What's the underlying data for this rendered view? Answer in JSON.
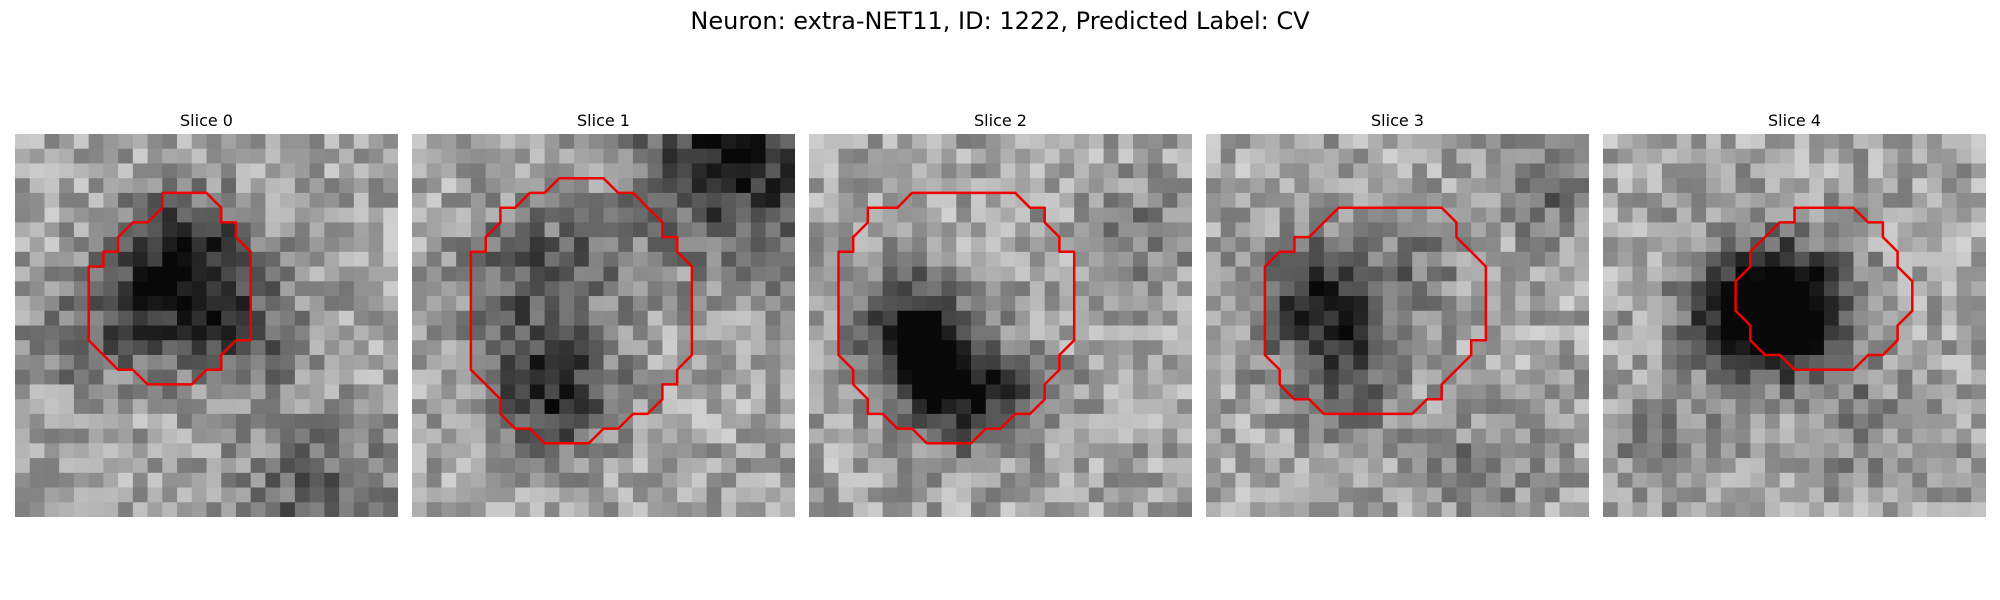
{
  "figure": {
    "title": "Neuron: extra-NET11, ID: 1222, Predicted Label: CV"
  },
  "style": {
    "contour_color": "#ee0000"
  },
  "panels": [
    {
      "title": "Slice 0",
      "contour": [
        [
          5,
          2
        ],
        [
          7,
          2
        ],
        [
          8,
          3
        ],
        [
          8,
          4
        ],
        [
          9,
          4
        ],
        [
          9,
          5
        ],
        [
          10,
          6
        ],
        [
          10,
          12
        ],
        [
          9,
          12
        ],
        [
          8,
          13
        ],
        [
          8,
          14
        ],
        [
          7,
          14
        ],
        [
          6,
          15
        ],
        [
          3,
          15
        ],
        [
          2,
          14
        ],
        [
          1,
          14
        ],
        [
          0,
          13
        ],
        [
          -1,
          12
        ],
        [
          -1,
          7
        ],
        [
          0,
          7
        ],
        [
          0,
          6
        ],
        [
          1,
          6
        ],
        [
          1,
          5
        ],
        [
          2,
          4
        ],
        [
          3,
          4
        ],
        [
          4,
          3
        ],
        [
          4,
          2
        ]
      ]
    },
    {
      "title": "Slice 1",
      "contour": [
        [
          4,
          1
        ],
        [
          7,
          1
        ],
        [
          8,
          2
        ],
        [
          9,
          2
        ],
        [
          10,
          3
        ],
        [
          11,
          4
        ],
        [
          11,
          5
        ],
        [
          12,
          5
        ],
        [
          12,
          6
        ],
        [
          13,
          7
        ],
        [
          13,
          13
        ],
        [
          12,
          14
        ],
        [
          12,
          15
        ],
        [
          11,
          15
        ],
        [
          11,
          16
        ],
        [
          10,
          17
        ],
        [
          9,
          17
        ],
        [
          8,
          18
        ],
        [
          7,
          18
        ],
        [
          6,
          19
        ],
        [
          3,
          19
        ],
        [
          2,
          18
        ],
        [
          1,
          18
        ],
        [
          0,
          17
        ],
        [
          0,
          16
        ],
        [
          -1,
          15
        ],
        [
          -2,
          14
        ],
        [
          -2,
          6
        ],
        [
          -1,
          6
        ],
        [
          -1,
          5
        ],
        [
          0,
          4
        ],
        [
          0,
          3
        ],
        [
          1,
          3
        ],
        [
          2,
          2
        ],
        [
          3,
          2
        ]
      ]
    },
    {
      "title": "Slice 2",
      "contour": [
        [
          3,
          2
        ],
        [
          8,
          2
        ],
        [
          9,
          3
        ],
        [
          10,
          3
        ],
        [
          10,
          4
        ],
        [
          11,
          5
        ],
        [
          11,
          6
        ],
        [
          12,
          6
        ],
        [
          12,
          12
        ],
        [
          11,
          13
        ],
        [
          11,
          14
        ],
        [
          10,
          15
        ],
        [
          10,
          16
        ],
        [
          9,
          17
        ],
        [
          8,
          17
        ],
        [
          7,
          18
        ],
        [
          6,
          18
        ],
        [
          5,
          19
        ],
        [
          2,
          19
        ],
        [
          1,
          18
        ],
        [
          0,
          18
        ],
        [
          -1,
          17
        ],
        [
          -2,
          17
        ],
        [
          -2,
          16
        ],
        [
          -3,
          15
        ],
        [
          -3,
          14
        ],
        [
          -4,
          13
        ],
        [
          -4,
          6
        ],
        [
          -3,
          6
        ],
        [
          -3,
          5
        ],
        [
          -2,
          4
        ],
        [
          -2,
          3
        ],
        [
          0,
          3
        ],
        [
          1,
          2
        ]
      ]
    },
    {
      "title": "Slice 3",
      "contour": [
        [
          5,
          3
        ],
        [
          10,
          3
        ],
        [
          11,
          4
        ],
        [
          11,
          5
        ],
        [
          12,
          6
        ],
        [
          13,
          7
        ],
        [
          13,
          12
        ],
        [
          12,
          12
        ],
        [
          12,
          13
        ],
        [
          11,
          14
        ],
        [
          10,
          15
        ],
        [
          10,
          16
        ],
        [
          9,
          16
        ],
        [
          8,
          17
        ],
        [
          2,
          17
        ],
        [
          1,
          16
        ],
        [
          0,
          16
        ],
        [
          -1,
          15
        ],
        [
          -1,
          14
        ],
        [
          -2,
          13
        ],
        [
          -2,
          7
        ],
        [
          -1,
          6
        ],
        [
          0,
          6
        ],
        [
          0,
          5
        ],
        [
          1,
          5
        ],
        [
          2,
          4
        ],
        [
          3,
          3
        ]
      ]
    },
    {
      "title": "Slice 4",
      "contour": [
        [
          7,
          3
        ],
        [
          11,
          3
        ],
        [
          12,
          4
        ],
        [
          13,
          4
        ],
        [
          13,
          5
        ],
        [
          14,
          6
        ],
        [
          14,
          7
        ],
        [
          15,
          8
        ],
        [
          15,
          10
        ],
        [
          14,
          11
        ],
        [
          14,
          12
        ],
        [
          13,
          13
        ],
        [
          12,
          13
        ],
        [
          11,
          14
        ],
        [
          7,
          14
        ],
        [
          6,
          13
        ],
        [
          5,
          13
        ],
        [
          4,
          12
        ],
        [
          4,
          11
        ],
        [
          3,
          10
        ],
        [
          3,
          8
        ],
        [
          4,
          7
        ],
        [
          4,
          6
        ],
        [
          5,
          5
        ],
        [
          6,
          4
        ],
        [
          7,
          4
        ]
      ]
    }
  ]
}
